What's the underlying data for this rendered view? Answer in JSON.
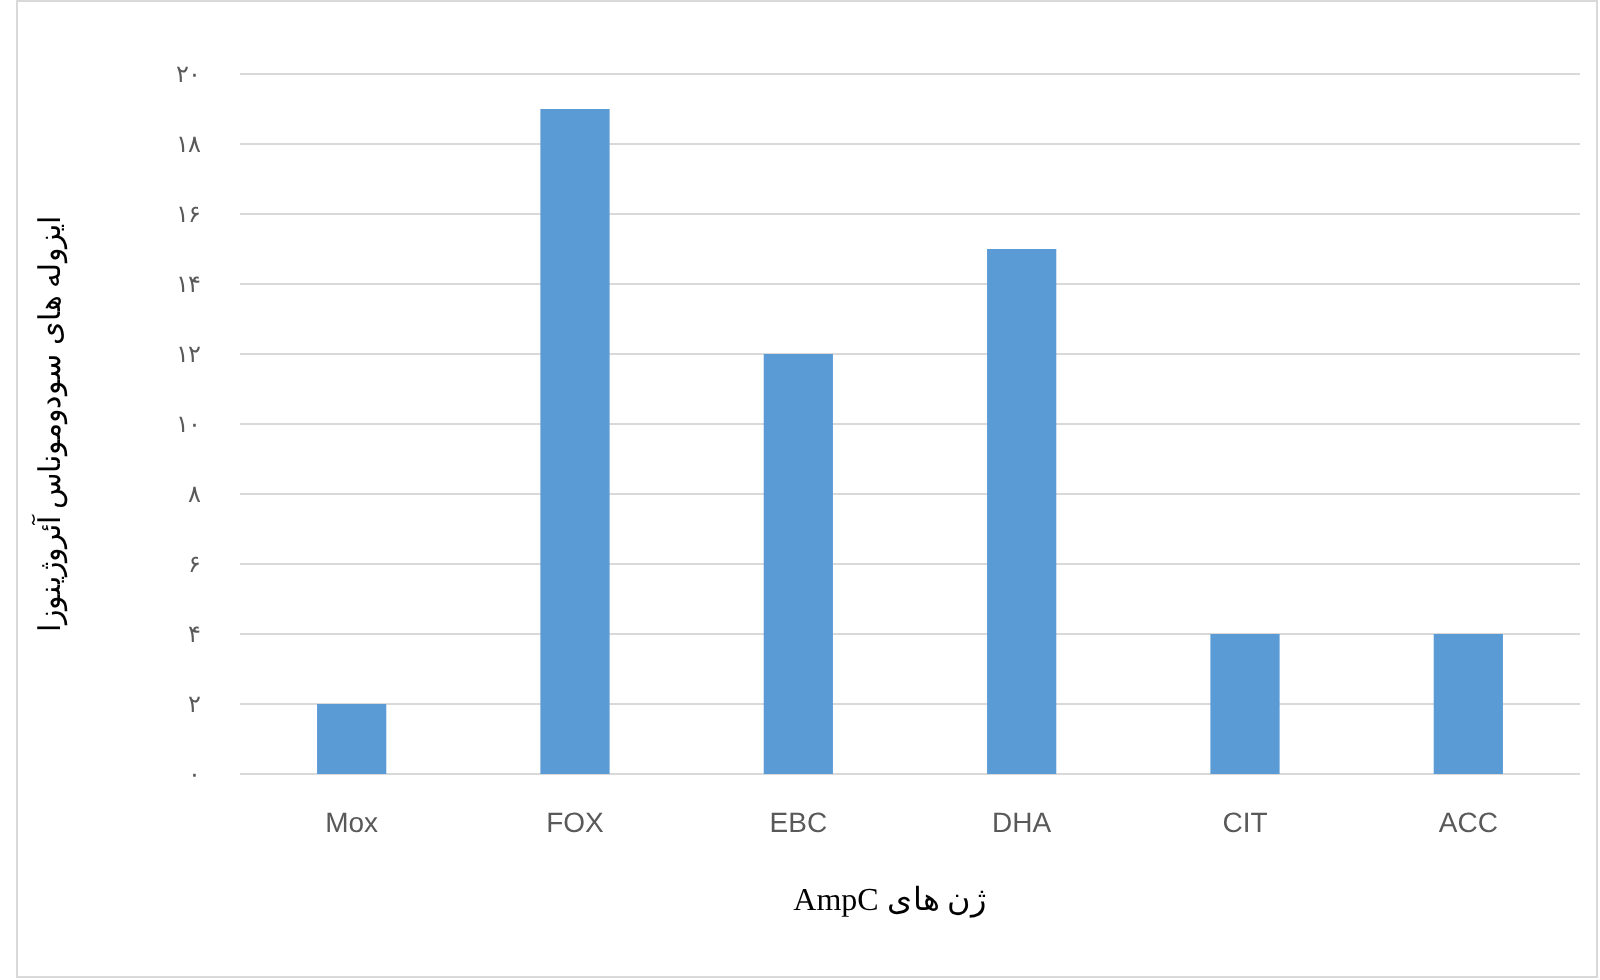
{
  "chart_data": {
    "type": "bar",
    "xlabel": "ژن های AmpC",
    "ylabel": "ایزوله های سودوموناس آئروژینوزا",
    "categories": [
      "Mox",
      "FOX",
      "EBC",
      "DHA",
      "CIT",
      "ACC"
    ],
    "values": [
      2,
      19,
      12,
      15,
      4,
      4
    ],
    "color": "#5b9bd5",
    "ylim": [
      0,
      20
    ],
    "yticks": [
      {
        "value": 0,
        "label": "۰"
      },
      {
        "value": 2,
        "label": "۲"
      },
      {
        "value": 4,
        "label": "۴"
      },
      {
        "value": 6,
        "label": "۶"
      },
      {
        "value": 8,
        "label": "۸"
      },
      {
        "value": 10,
        "label": "۱۰"
      },
      {
        "value": 12,
        "label": "۱۲"
      },
      {
        "value": 14,
        "label": "۱۴"
      },
      {
        "value": 16,
        "label": "۱۶"
      },
      {
        "value": 18,
        "label": "۱۸"
      },
      {
        "value": 20,
        "label": "۲۰"
      }
    ],
    "grid": "y"
  }
}
